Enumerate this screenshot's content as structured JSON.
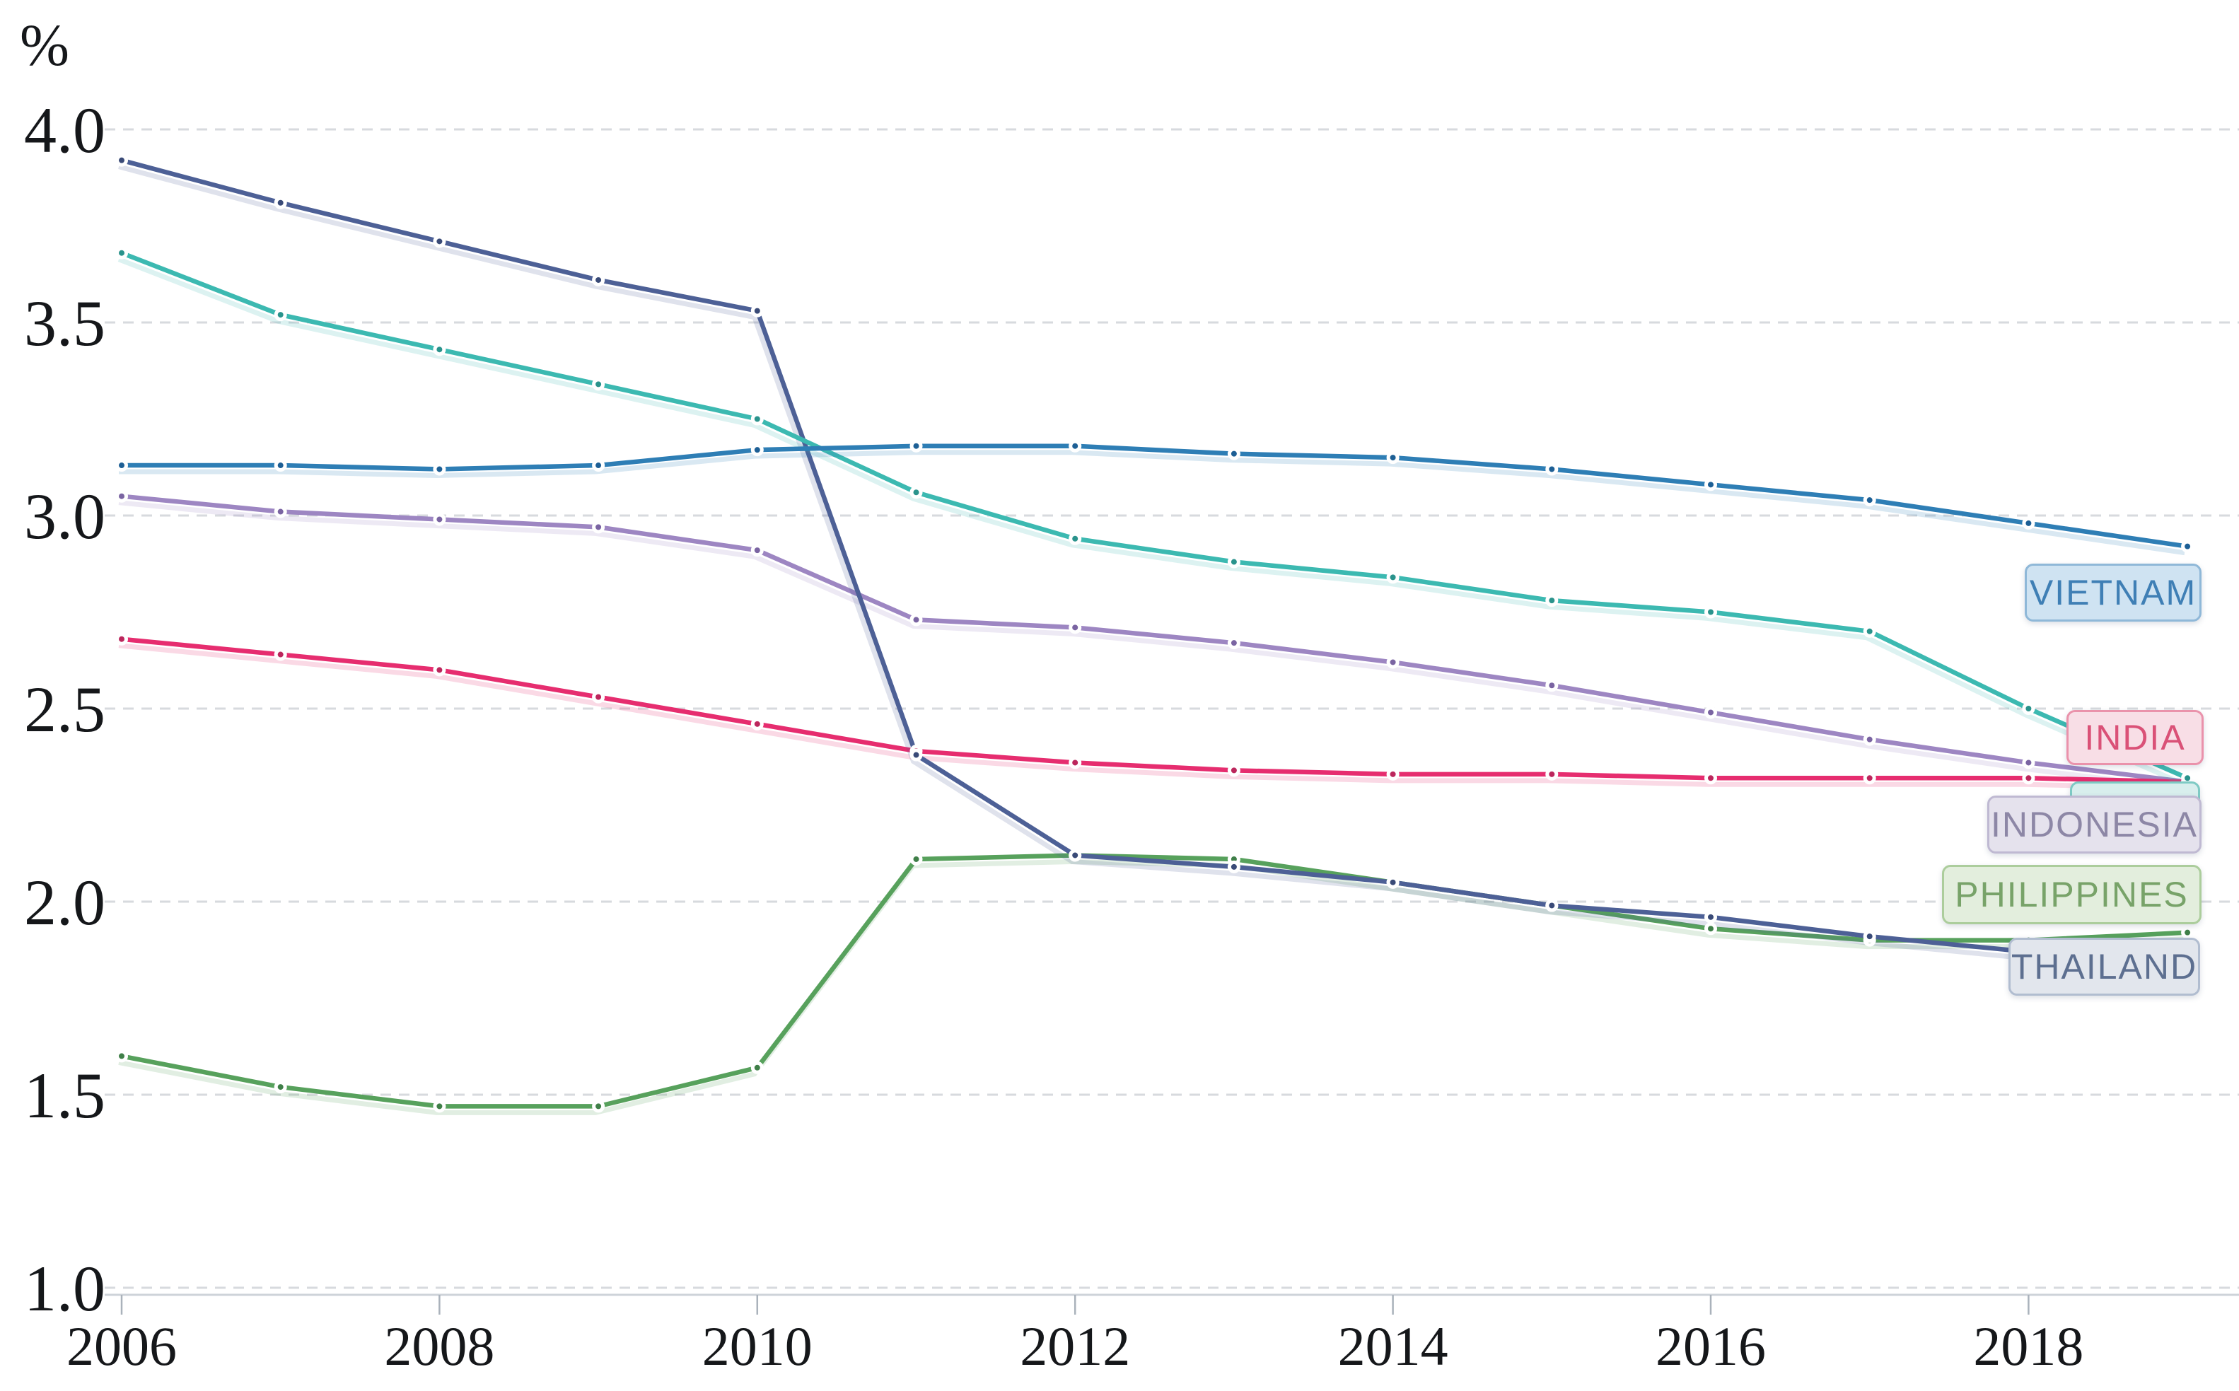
{
  "chart_data": {
    "type": "line",
    "title": "",
    "unit_label": "%",
    "xlabel": "",
    "ylabel": "%",
    "grid": "horizontal-dashed",
    "legend_position": "end-of-line-chips-right",
    "ylim": [
      1.0,
      4.0
    ],
    "xlim": [
      2006,
      2019
    ],
    "x": [
      2006,
      2007,
      2008,
      2009,
      2010,
      2011,
      2012,
      2013,
      2014,
      2015,
      2016,
      2017,
      2018,
      2019
    ],
    "y_axis": {
      "unit": "%",
      "tick_labels": [
        "4.0",
        "3.5",
        "3.0",
        "2.5",
        "2.0",
        "1.5",
        "1.0"
      ],
      "tick_values": [
        4.0,
        3.5,
        3.0,
        2.5,
        2.0,
        1.5,
        1.0
      ]
    },
    "x_axis": {
      "tick_labels": [
        "2006",
        "2008",
        "2010",
        "2012",
        "2014",
        "2016",
        "2018"
      ],
      "tick_values": [
        2006,
        2008,
        2010,
        2012,
        2014,
        2016,
        2018
      ]
    },
    "series": [
      {
        "id": "indonesia",
        "name": "INDONESIA",
        "line_color": "#9d86c2",
        "marker_color": "#7a64a2",
        "label_visible": true,
        "chip": {
          "text": "INDONESIA",
          "bg": "#e5e2ed",
          "border": "#bfb9d2",
          "text_color": "#8d87a6"
        },
        "values": [
          3.05,
          3.01,
          2.99,
          2.97,
          2.91,
          2.73,
          2.71,
          2.67,
          2.62,
          2.56,
          2.49,
          2.42,
          2.36,
          2.31
        ]
      },
      {
        "id": "india",
        "name": "INDIA",
        "line_color": "#e62d6f",
        "marker_color": "#bc265c",
        "label_visible": true,
        "chip": {
          "text": "INDIA",
          "bg": "#f8dee6",
          "border": "#ea92ab",
          "text_color": "#da5177"
        },
        "values": [
          2.68,
          2.64,
          2.6,
          2.53,
          2.46,
          2.39,
          2.36,
          2.34,
          2.33,
          2.33,
          2.32,
          2.32,
          2.32,
          2.31
        ]
      },
      {
        "id": "philippines",
        "name": "PHILIPPINES",
        "line_color": "#57a15c",
        "marker_color": "#3f7f48",
        "label_visible": true,
        "chip": {
          "text": "PHILIPPINES",
          "bg": "#e3eedd",
          "border": "#accd9c",
          "text_color": "#78a369"
        },
        "values": [
          1.6,
          1.52,
          1.47,
          1.47,
          1.57,
          2.11,
          2.12,
          2.11,
          2.05,
          1.99,
          1.93,
          1.9,
          1.9,
          1.92
        ]
      },
      {
        "id": "thailand",
        "name": "THAILAND",
        "line_color": "#4d6096",
        "marker_color": "#394a77",
        "label_visible": true,
        "chip": {
          "text": "THAILAND",
          "bg": "#e2e6ed",
          "border": "#b1bdd0",
          "text_color": "#5d6f90"
        },
        "values": [
          3.92,
          3.81,
          3.71,
          3.61,
          3.53,
          2.38,
          2.12,
          2.09,
          2.05,
          1.99,
          1.96,
          1.91,
          1.87,
          1.82
        ]
      },
      {
        "id": "unlabeled-teal",
        "name": "",
        "line_color": "#3cb9b1",
        "marker_color": "#2a938c",
        "label_visible": false,
        "chip": {
          "text": "",
          "bg": "#d8eeed",
          "border": "#7ecac4",
          "text_color": "#3aa39e"
        },
        "values": [
          3.68,
          3.52,
          3.43,
          3.34,
          3.25,
          3.06,
          2.94,
          2.88,
          2.84,
          2.78,
          2.75,
          2.7,
          2.5,
          2.32
        ]
      },
      {
        "id": "vietnam",
        "name": "VIETNAM",
        "line_color": "#2e7eb5",
        "marker_color": "#1d5f95",
        "label_visible": true,
        "chip": {
          "text": "VIETNAM",
          "bg": "#cfe3f2",
          "border": "#8fb8d8",
          "text_color": "#3f7fb5"
        },
        "values": [
          3.13,
          3.13,
          3.12,
          3.13,
          3.17,
          3.18,
          3.18,
          3.16,
          3.15,
          3.12,
          3.08,
          3.04,
          2.98,
          2.92
        ]
      }
    ],
    "colors": {
      "background": "#ffffff",
      "gridline": "#d7dade",
      "axis_line": "#ced3d9",
      "tick_mark": "#aab2bb",
      "axis_text": "#15171a"
    }
  }
}
